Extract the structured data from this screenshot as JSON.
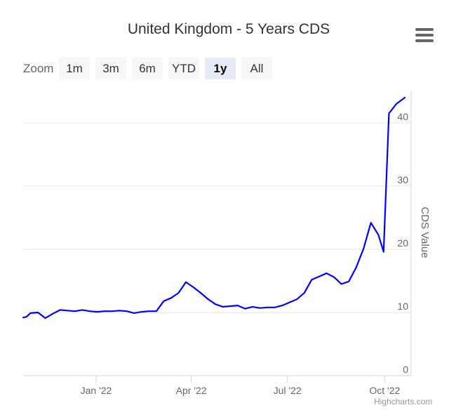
{
  "title": "United Kingdom - 5 Years CDS",
  "menu": {
    "icon": "hamburger-menu-icon"
  },
  "zoom": {
    "label": "Zoom",
    "buttons": [
      {
        "label": "1m",
        "active": false
      },
      {
        "label": "3m",
        "active": false
      },
      {
        "label": "6m",
        "active": false
      },
      {
        "label": "YTD",
        "active": false
      },
      {
        "label": "1y",
        "active": true
      },
      {
        "label": "All",
        "active": false
      }
    ]
  },
  "credit": "Highcharts.com",
  "chart_data": {
    "type": "line",
    "title": "United Kingdom - 5 Years CDS",
    "xlabel": "",
    "ylabel": "CDS Value",
    "ylim": [
      0,
      45
    ],
    "yticks": [
      0,
      10,
      20,
      30,
      40
    ],
    "xlim": [
      "2021-10-24",
      "2022-10-26"
    ],
    "xticks": [
      {
        "date": "2022-01-01",
        "label": "Jan '22"
      },
      {
        "date": "2022-04-01",
        "label": "Apr '22"
      },
      {
        "date": "2022-07-01",
        "label": "Jul '22"
      },
      {
        "date": "2022-10-01",
        "label": "Oct '22"
      }
    ],
    "grid": true,
    "legend": "none",
    "series": [
      {
        "color": "#0000ff",
        "points": [
          [
            "2021-10-24",
            9.2
          ],
          [
            "2021-10-27",
            9.3
          ],
          [
            "2021-10-31",
            9.9
          ],
          [
            "2021-11-07",
            10.0
          ],
          [
            "2021-11-14",
            9.1
          ],
          [
            "2021-11-21",
            9.8
          ],
          [
            "2021-11-28",
            10.4
          ],
          [
            "2021-12-05",
            10.3
          ],
          [
            "2021-12-12",
            10.2
          ],
          [
            "2021-12-19",
            10.4
          ],
          [
            "2021-12-26",
            10.2
          ],
          [
            "2022-01-02",
            10.1
          ],
          [
            "2022-01-09",
            10.2
          ],
          [
            "2022-01-16",
            10.2
          ],
          [
            "2022-01-23",
            10.3
          ],
          [
            "2022-01-30",
            10.2
          ],
          [
            "2022-02-06",
            9.9
          ],
          [
            "2022-02-13",
            10.1
          ],
          [
            "2022-02-20",
            10.2
          ],
          [
            "2022-02-27",
            10.2
          ],
          [
            "2022-03-06",
            11.8
          ],
          [
            "2022-03-13",
            12.3
          ],
          [
            "2022-03-20",
            13.1
          ],
          [
            "2022-03-27",
            14.8
          ],
          [
            "2022-04-03",
            14.0
          ],
          [
            "2022-04-10",
            13.1
          ],
          [
            "2022-04-17",
            12.1
          ],
          [
            "2022-04-24",
            11.3
          ],
          [
            "2022-05-01",
            10.9
          ],
          [
            "2022-05-08",
            11.0
          ],
          [
            "2022-05-15",
            11.1
          ],
          [
            "2022-05-22",
            10.6
          ],
          [
            "2022-05-29",
            10.9
          ],
          [
            "2022-06-05",
            10.7
          ],
          [
            "2022-06-12",
            10.8
          ],
          [
            "2022-06-19",
            10.8
          ],
          [
            "2022-06-26",
            11.1
          ],
          [
            "2022-07-03",
            11.6
          ],
          [
            "2022-07-10",
            12.1
          ],
          [
            "2022-07-17",
            13.1
          ],
          [
            "2022-07-24",
            15.2
          ],
          [
            "2022-07-31",
            15.7
          ],
          [
            "2022-08-07",
            16.2
          ],
          [
            "2022-08-14",
            15.6
          ],
          [
            "2022-08-21",
            14.5
          ],
          [
            "2022-08-28",
            14.9
          ],
          [
            "2022-09-04",
            17.1
          ],
          [
            "2022-09-11",
            20.1
          ],
          [
            "2022-09-18",
            24.2
          ],
          [
            "2022-09-25",
            22.3
          ],
          [
            "2022-09-30",
            19.6
          ],
          [
            "2022-10-05",
            41.5
          ],
          [
            "2022-10-12",
            43.0
          ],
          [
            "2022-10-20",
            44.0
          ]
        ]
      }
    ]
  }
}
